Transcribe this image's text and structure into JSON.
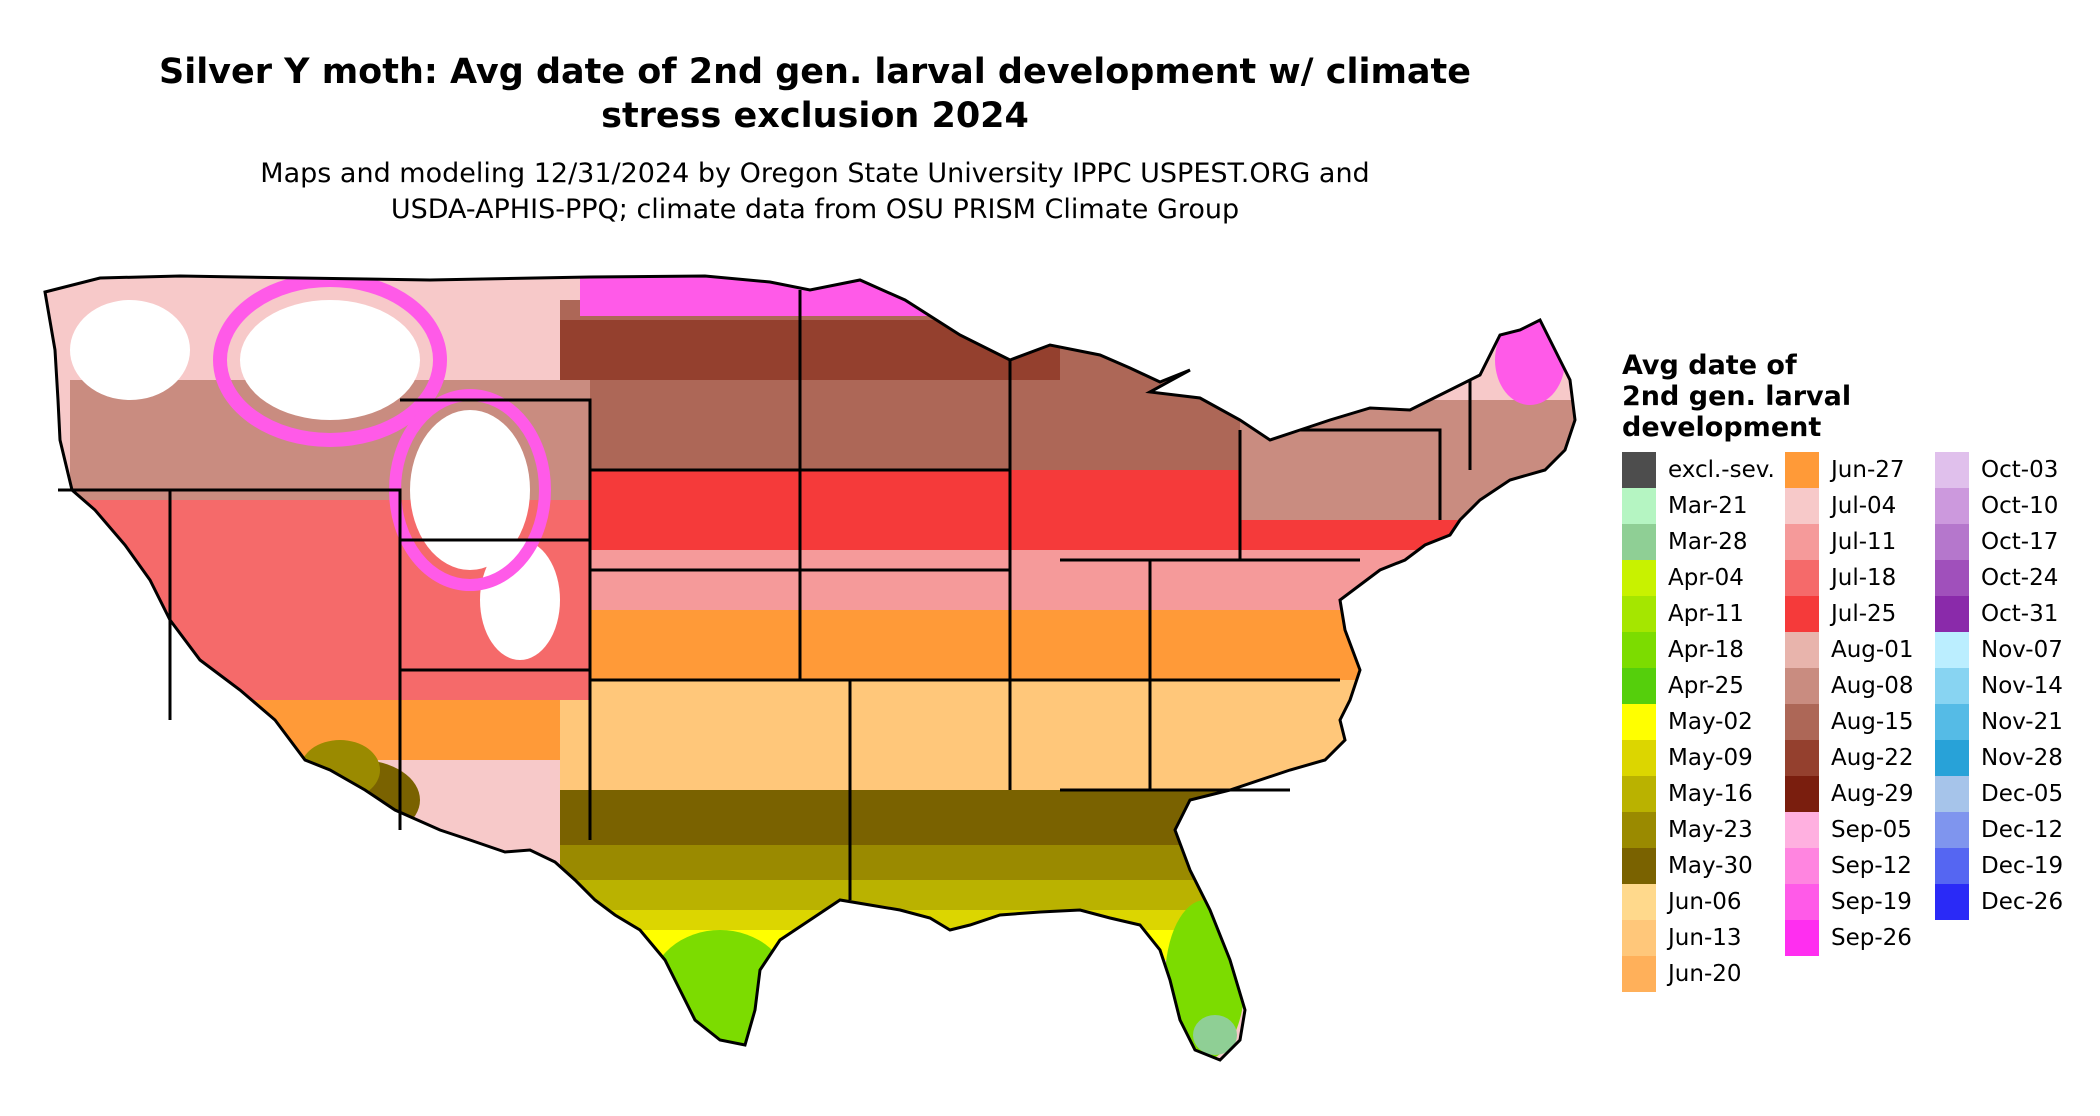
{
  "title_line1": "Silver Y moth: Avg date of 2nd gen. larval development w/ climate",
  "title_line2": "stress exclusion 2024",
  "subtitle_line1": "Maps and modeling 12/31/2024 by Oregon State University IPPC USPEST.ORG and",
  "subtitle_line2": "USDA-APHIS-PPQ; climate data from OSU PRISM Climate Group",
  "legend": {
    "title_lines": [
      "Avg date of",
      "2nd gen. larval",
      "development"
    ],
    "items": [
      {
        "label": "excl.-sev.",
        "color": "#4d4d4d"
      },
      {
        "label": "Mar-21",
        "color": "#b5f5c2"
      },
      {
        "label": "Mar-28",
        "color": "#8fcf95"
      },
      {
        "label": "Apr-04",
        "color": "#c8f200"
      },
      {
        "label": "Apr-11",
        "color": "#a5e600"
      },
      {
        "label": "Apr-18",
        "color": "#7cdc00"
      },
      {
        "label": "Apr-25",
        "color": "#55cf0c"
      },
      {
        "label": "May-02",
        "color": "#ffff00"
      },
      {
        "label": "May-09",
        "color": "#dcd600"
      },
      {
        "label": "May-16",
        "color": "#bab200"
      },
      {
        "label": "May-23",
        "color": "#9a8a00"
      },
      {
        "label": "May-30",
        "color": "#7a6200"
      },
      {
        "label": "Jun-06",
        "color": "#ffd98c"
      },
      {
        "label": "Jun-13",
        "color": "#ffc77a"
      },
      {
        "label": "Jun-20",
        "color": "#ffb05a"
      },
      {
        "label": "Jun-27",
        "color": "#ff9a38"
      },
      {
        "label": "Jul-04",
        "color": "#f7c9c9"
      },
      {
        "label": "Jul-11",
        "color": "#f59a9a"
      },
      {
        "label": "Jul-18",
        "color": "#f56a6a"
      },
      {
        "label": "Jul-25",
        "color": "#f53a3a"
      },
      {
        "label": "Aug-01",
        "color": "#e8b4ac"
      },
      {
        "label": "Aug-08",
        "color": "#c98c80"
      },
      {
        "label": "Aug-15",
        "color": "#ad6757"
      },
      {
        "label": "Aug-22",
        "color": "#94402e"
      },
      {
        "label": "Aug-29",
        "color": "#7a1e0e"
      },
      {
        "label": "Sep-05",
        "color": "#ffb0e0"
      },
      {
        "label": "Sep-12",
        "color": "#ff85e0"
      },
      {
        "label": "Sep-19",
        "color": "#ff5ae8"
      },
      {
        "label": "Sep-26",
        "color": "#ff2ef0"
      },
      {
        "label": "Oct-03",
        "color": "#e0c0ec"
      },
      {
        "label": "Oct-10",
        "color": "#cc99dd"
      },
      {
        "label": "Oct-17",
        "color": "#b577cc"
      },
      {
        "label": "Oct-24",
        "color": "#a050bb"
      },
      {
        "label": "Oct-31",
        "color": "#8a2aaa"
      },
      {
        "label": "Nov-07",
        "color": "#bbeeff"
      },
      {
        "label": "Nov-14",
        "color": "#88d4f2"
      },
      {
        "label": "Nov-21",
        "color": "#55bbe6"
      },
      {
        "label": "Nov-28",
        "color": "#28a2d8"
      },
      {
        "label": "Dec-05",
        "color": "#a6c4ea"
      },
      {
        "label": "Dec-12",
        "color": "#7f95ee"
      },
      {
        "label": "Dec-19",
        "color": "#5566f2"
      },
      {
        "label": "Dec-26",
        "color": "#2a2af7"
      }
    ]
  }
}
